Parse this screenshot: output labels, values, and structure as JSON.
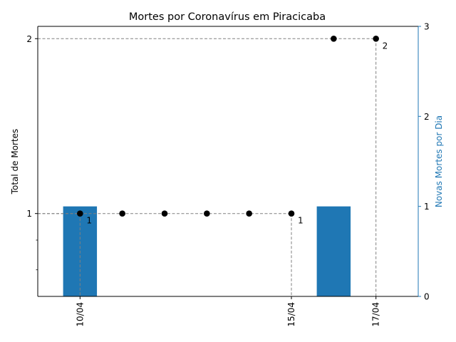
{
  "chart_data": {
    "type": "bar+scatter",
    "title": "Mortes por Coronavírus em Piracicaba",
    "x": [
      "2020-04-10",
      "2020-04-11",
      "2020-04-12",
      "2020-04-13",
      "2020-04-14",
      "2020-04-15",
      "2020-04-16",
      "2020-04-17"
    ],
    "xticks": [
      {
        "x": "2020-04-10",
        "label": "10/04"
      },
      {
        "x": "2020-04-15",
        "label": "15/04"
      },
      {
        "x": "2020-04-17",
        "label": "17/04"
      }
    ],
    "xlim": [
      "2020-04-09",
      "2020-04-18"
    ],
    "left_axis": {
      "ylabel": "Total de Mortes",
      "scale": "log",
      "ylim": [
        0.72,
        2.1
      ],
      "ticks": [
        {
          "value": 1,
          "label": "1"
        },
        {
          "value": 2,
          "label": "2"
        }
      ],
      "minor_ticks": [
        0.8,
        0.9
      ]
    },
    "right_axis": {
      "ylabel": "Novas Mortes por Dia",
      "ylim": [
        0,
        3
      ],
      "ticks": [
        0,
        1,
        2,
        3
      ],
      "color": "#1f77b4"
    },
    "series": [
      {
        "type": "scatter",
        "axis": "left",
        "color": "#000000",
        "x": [
          "2020-04-10",
          "2020-04-11",
          "2020-04-12",
          "2020-04-13",
          "2020-04-14",
          "2020-04-15",
          "2020-04-16",
          "2020-04-17"
        ],
        "values": [
          1,
          1,
          1,
          1,
          1,
          1,
          2,
          2
        ]
      },
      {
        "type": "bar",
        "axis": "right",
        "color": "#1f77b4",
        "x": [
          "2020-04-10",
          "2020-04-16"
        ],
        "values": [
          1,
          1
        ]
      }
    ],
    "annotations": [
      {
        "x": "2020-04-10",
        "y": 1,
        "text": "1"
      },
      {
        "x": "2020-04-15",
        "y": 1,
        "text": "1"
      },
      {
        "x": "2020-04-17",
        "y": 2,
        "text": "2"
      }
    ],
    "guide_lines": [
      {
        "x": "2020-04-10",
        "y": 1
      },
      {
        "x": "2020-04-15",
        "y": 1
      },
      {
        "x": "2020-04-17",
        "y": 2
      }
    ],
    "grid": false
  }
}
